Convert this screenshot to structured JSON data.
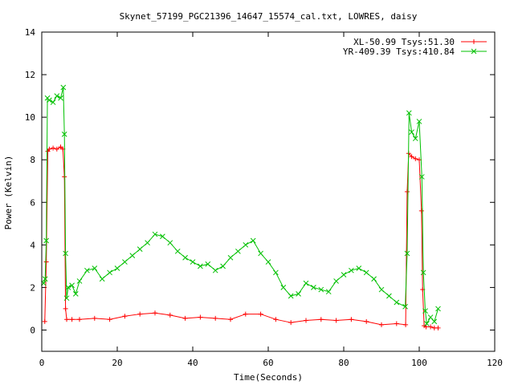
{
  "chart_data": {
    "type": "line",
    "title": "Skynet_57199_PGC21396_14647_15574_cal.txt, LOWRES, daisy",
    "xlabel": "Time(Seconds)",
    "ylabel": "Power (Kelvin)",
    "xlim": [
      0,
      120
    ],
    "ylim": [
      -1,
      14
    ],
    "xticks": [
      0,
      20,
      40,
      60,
      80,
      100,
      120
    ],
    "yticks": [
      0,
      2,
      4,
      6,
      8,
      10,
      12,
      14
    ],
    "grid": false,
    "legend_position": "top-right",
    "series": [
      {
        "name": "XL-50.99 Tsys:51.30",
        "color": "#ff0000",
        "marker": "plus",
        "x": [
          0.8,
          1.2,
          1.6,
          2,
          3,
          4,
          5,
          5.6,
          6,
          6.3,
          6.6,
          8,
          10,
          14,
          18,
          22,
          26,
          30,
          34,
          38,
          42,
          46,
          50,
          54,
          58,
          62,
          66,
          70,
          74,
          78,
          82,
          86,
          90,
          94,
          96.4,
          96.8,
          97.2,
          98,
          99,
          100,
          100.6,
          100.9,
          101.3,
          101.8,
          103,
          104,
          105
        ],
        "y": [
          0.4,
          3.2,
          8.4,
          8.5,
          8.55,
          8.5,
          8.6,
          8.5,
          7.2,
          1.0,
          0.5,
          0.5,
          0.5,
          0.55,
          0.5,
          0.65,
          0.75,
          0.8,
          0.7,
          0.55,
          0.6,
          0.55,
          0.5,
          0.75,
          0.75,
          0.5,
          0.35,
          0.45,
          0.5,
          0.45,
          0.5,
          0.4,
          0.25,
          0.3,
          0.25,
          6.5,
          8.3,
          8.15,
          8.05,
          8.0,
          5.6,
          1.9,
          0.2,
          0.15,
          0.15,
          0.1,
          0.1
        ]
      },
      {
        "name": "YR-409.39 Tsys:410.84",
        "color": "#00c000",
        "marker": "x",
        "x": [
          0.5,
          0.9,
          1.2,
          1.5,
          2,
          3,
          4,
          5,
          5.7,
          6,
          6.3,
          6.6,
          7,
          8,
          9,
          10,
          12,
          14,
          16,
          18,
          20,
          22,
          24,
          26,
          28,
          30,
          32,
          34,
          36,
          38,
          40,
          42,
          44,
          46,
          48,
          50,
          52,
          54,
          56,
          58,
          60,
          62,
          64,
          66,
          68,
          70,
          72,
          74,
          76,
          78,
          80,
          82,
          84,
          86,
          88,
          90,
          92,
          94,
          96.3,
          96.8,
          97.3,
          98,
          99,
          100,
          100.7,
          101.1,
          101.6,
          102,
          103,
          104,
          105
        ],
        "y": [
          2.2,
          2.4,
          4.2,
          10.9,
          10.8,
          10.7,
          11.0,
          10.9,
          11.4,
          9.2,
          3.6,
          1.5,
          2.0,
          2.1,
          1.7,
          2.3,
          2.8,
          2.9,
          2.4,
          2.7,
          2.9,
          3.2,
          3.5,
          3.8,
          4.1,
          4.5,
          4.4,
          4.1,
          3.7,
          3.4,
          3.2,
          3.0,
          3.1,
          2.8,
          3.0,
          3.4,
          3.7,
          4.0,
          4.2,
          3.6,
          3.2,
          2.7,
          2.0,
          1.6,
          1.7,
          2.2,
          2.0,
          1.9,
          1.8,
          2.3,
          2.6,
          2.8,
          2.9,
          2.7,
          2.4,
          1.9,
          1.6,
          1.3,
          1.1,
          3.6,
          10.2,
          9.3,
          9.0,
          9.8,
          7.2,
          2.7,
          0.9,
          0.3,
          0.6,
          0.4,
          1.0
        ]
      }
    ]
  }
}
